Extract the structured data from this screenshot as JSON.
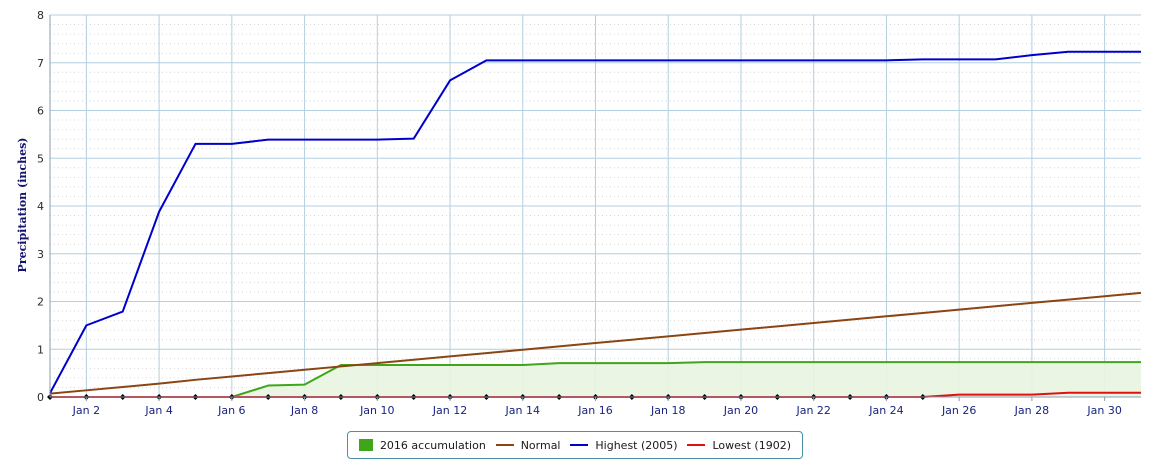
{
  "chart_data": {
    "type": "line",
    "ylabel": "Precipitation (inches)",
    "xlabel": "",
    "ylim": [
      0,
      8
    ],
    "yticks": [
      0,
      1,
      2,
      3,
      4,
      5,
      6,
      7,
      8
    ],
    "x_tick_labels": [
      "Jan 2",
      "Jan 4",
      "Jan 6",
      "Jan 8",
      "Jan 10",
      "Jan 12",
      "Jan 14",
      "Jan 16",
      "Jan 18",
      "Jan 20",
      "Jan 22",
      "Jan 24",
      "Jan 26",
      "Jan 28",
      "Jan 30"
    ],
    "x_tick_days": [
      2,
      4,
      6,
      8,
      10,
      12,
      14,
      16,
      18,
      20,
      22,
      24,
      26,
      28,
      30
    ],
    "xlim": [
      1,
      31
    ],
    "grid": true,
    "legend_position": "bottom-center",
    "days": [
      1,
      2,
      3,
      4,
      5,
      6,
      7,
      8,
      9,
      10,
      11,
      12,
      13,
      14,
      15,
      16,
      17,
      18,
      19,
      20,
      21,
      22,
      23,
      24,
      25,
      26,
      27,
      28,
      29,
      30,
      31
    ],
    "series": [
      {
        "name": "2016 accumulation",
        "style": "area",
        "color": "#3fa51a",
        "values": [
          0,
          0,
          0,
          0,
          0,
          0,
          0.24,
          0.26,
          0.67,
          0.67,
          0.67,
          0.67,
          0.67,
          0.67,
          0.71,
          0.71,
          0.71,
          0.71,
          0.73,
          0.73,
          0.73,
          0.73,
          0.73,
          0.73,
          0.73,
          0.73,
          0.73,
          0.73,
          0.73,
          0.73,
          0.73
        ]
      },
      {
        "name": "Normal",
        "style": "line",
        "color": "#8b4513",
        "values": [
          0.07,
          0.14,
          0.21,
          0.28,
          0.36,
          0.43,
          0.5,
          0.57,
          0.64,
          0.71,
          0.78,
          0.85,
          0.92,
          0.99,
          1.06,
          1.13,
          1.2,
          1.27,
          1.34,
          1.41,
          1.48,
          1.55,
          1.62,
          1.69,
          1.76,
          1.83,
          1.9,
          1.97,
          2.04,
          2.11,
          2.18
        ]
      },
      {
        "name": "Highest (2005)",
        "style": "line",
        "color": "#0000cc",
        "values": [
          0.08,
          1.5,
          1.79,
          3.88,
          5.3,
          5.3,
          5.39,
          5.39,
          5.39,
          5.39,
          5.41,
          6.63,
          7.05,
          7.05,
          7.05,
          7.05,
          7.05,
          7.05,
          7.05,
          7.05,
          7.05,
          7.05,
          7.05,
          7.05,
          7.07,
          7.07,
          7.07,
          7.16,
          7.23,
          7.23,
          7.23
        ]
      },
      {
        "name": "Lowest (1902)",
        "style": "line",
        "color": "#e01010",
        "values": [
          0,
          0,
          0,
          0,
          0,
          0,
          0,
          0,
          0,
          0,
          0,
          0,
          0,
          0,
          0,
          0,
          0,
          0,
          0,
          0,
          0,
          0,
          0,
          0,
          0,
          0.05,
          0.05,
          0.05,
          0.09,
          0.09,
          0.09
        ]
      }
    ],
    "marker_days": [
      1,
      2,
      3,
      4,
      5,
      6,
      7,
      8,
      9,
      10,
      11,
      12,
      13,
      14,
      15,
      16,
      17,
      18,
      19,
      20,
      21,
      22,
      23,
      24,
      25
    ],
    "marker_value": 0,
    "marker_color": "#000000"
  },
  "legend": {
    "items": [
      {
        "label": "2016 accumulation",
        "color": "#3fa51a",
        "kind": "box"
      },
      {
        "label": "Normal",
        "color": "#8b4513",
        "kind": "line"
      },
      {
        "label": "Highest (2005)",
        "color": "#0000cc",
        "kind": "line"
      },
      {
        "label": "Lowest (1902)",
        "color": "#e01010",
        "kind": "line"
      }
    ]
  }
}
